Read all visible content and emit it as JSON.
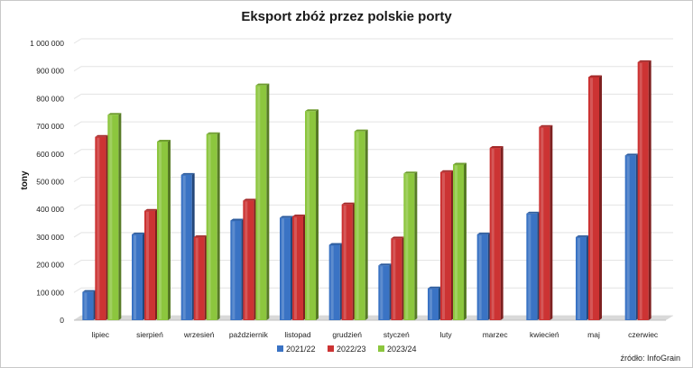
{
  "chart_data": {
    "type": "bar",
    "title": "Eksport zbóż przez polskie porty",
    "ylabel": "tony",
    "xlabel": "",
    "ylim": [
      0,
      1000000
    ],
    "yticks": [
      "0",
      "100 000",
      "200 000",
      "300 000",
      "400 000",
      "500 000",
      "600 000",
      "700 000",
      "800 000",
      "900 000",
      "1 000 000"
    ],
    "grid": true,
    "legend_position": "bottom",
    "categories": [
      "lipiec",
      "sierpień",
      "wrzesień",
      "październik",
      "listopad",
      "grudzień",
      "styczeń",
      "luty",
      "marzec",
      "kwiecień",
      "maj",
      "czerwiec"
    ],
    "series": [
      {
        "name": "2021/22",
        "color": "#3a73c4",
        "values": [
          102000,
          310000,
          525000,
          360000,
          370000,
          272000,
          198000,
          115000,
          310000,
          385000,
          300000,
          595000
        ]
      },
      {
        "name": "2022/23",
        "color": "#cc3333",
        "values": [
          662000,
          395000,
          300000,
          432000,
          375000,
          418000,
          295000,
          535000,
          622000,
          698000,
          878000,
          932000
        ]
      },
      {
        "name": "2023/24",
        "color": "#8cc63e",
        "values": [
          742000,
          645000,
          672000,
          848000,
          755000,
          682000,
          530000,
          562000,
          null,
          null,
          null,
          null
        ]
      }
    ]
  },
  "source": "źródło: InfoGrain"
}
